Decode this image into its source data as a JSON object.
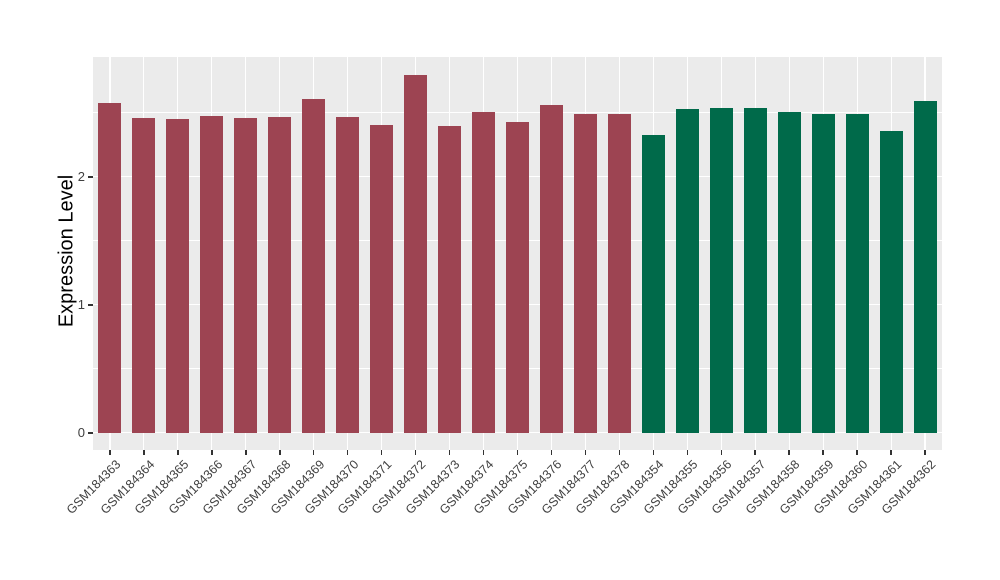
{
  "chart_data": {
    "type": "bar",
    "title": "",
    "xlabel": "",
    "ylabel": "Expression Level",
    "categories": [
      "GSM184363",
      "GSM184364",
      "GSM184365",
      "GSM184366",
      "GSM184367",
      "GSM184368",
      "GSM184369",
      "GSM184370",
      "GSM184371",
      "GSM184372",
      "GSM184373",
      "GSM184374",
      "GSM184375",
      "GSM184376",
      "GSM184377",
      "GSM184378",
      "GSM184354",
      "GSM184355",
      "GSM184356",
      "GSM184357",
      "GSM184358",
      "GSM184359",
      "GSM184360",
      "GSM184361",
      "GSM184362"
    ],
    "values": [
      2.58,
      2.46,
      2.45,
      2.48,
      2.46,
      2.47,
      2.61,
      2.47,
      2.41,
      2.8,
      2.4,
      2.51,
      2.43,
      2.56,
      2.49,
      2.49,
      2.33,
      2.53,
      2.54,
      2.54,
      2.51,
      2.49,
      2.49,
      2.36,
      2.59
    ],
    "bar_groups": [
      0,
      0,
      0,
      0,
      0,
      0,
      0,
      0,
      0,
      0,
      0,
      0,
      0,
      0,
      0,
      0,
      1,
      1,
      1,
      1,
      1,
      1,
      1,
      1,
      1
    ],
    "group_colors": [
      "#9D4452",
      "#006A4A"
    ],
    "y_major_ticks": [
      0,
      1,
      2
    ],
    "y_minor_ticks": [
      0.5,
      1.5,
      2.5
    ],
    "ylim": [
      -0.14,
      2.94
    ],
    "grid": true,
    "legend": "none",
    "style": {
      "panel_bg": "#EBEBEB",
      "grid_color": "#FFFFFF",
      "axis_text_color": "#404040",
      "axis_title_color": "#000000",
      "tick_mark_color": "#333333"
    }
  }
}
